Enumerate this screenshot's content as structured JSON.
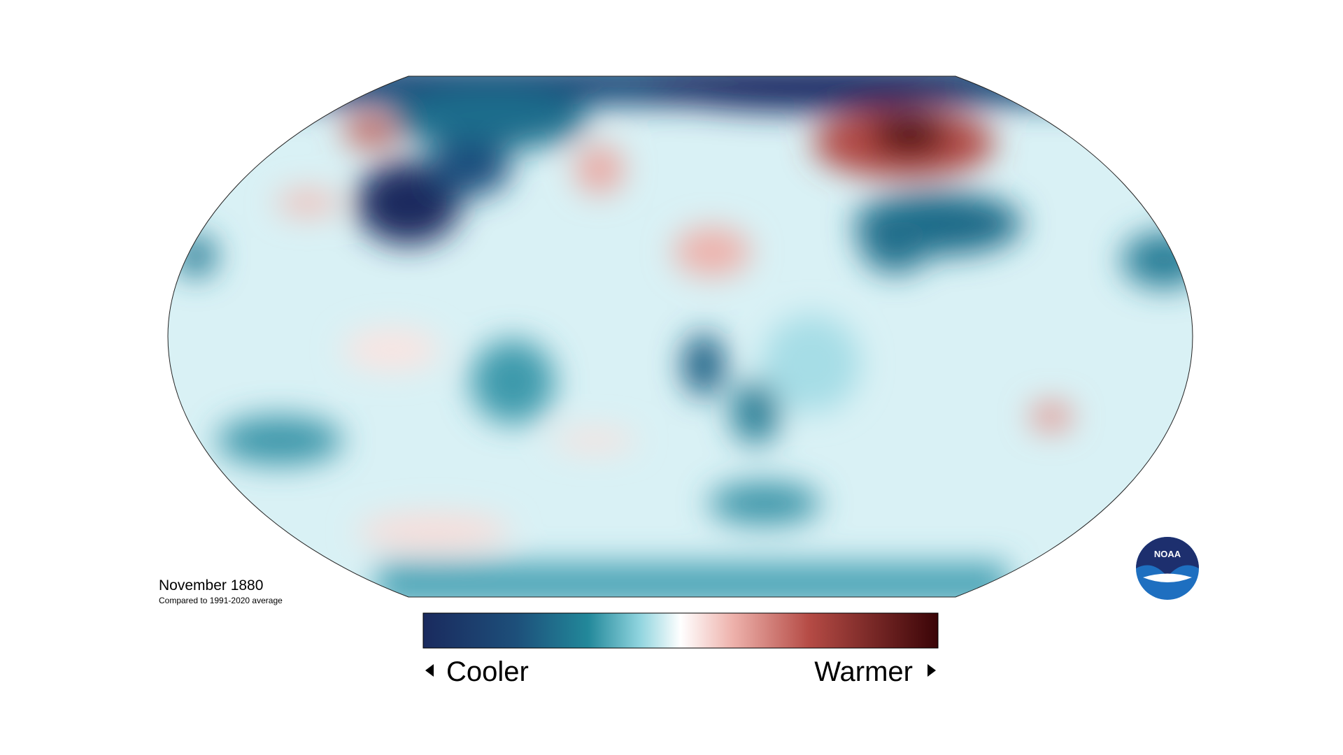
{
  "map": {
    "title": "November 1880",
    "subtitle": "Compared to 1991-2020 average"
  },
  "legend": {
    "low_label": "Cooler",
    "high_label": "Warmer"
  },
  "logo": {
    "text": "NOAA"
  }
}
